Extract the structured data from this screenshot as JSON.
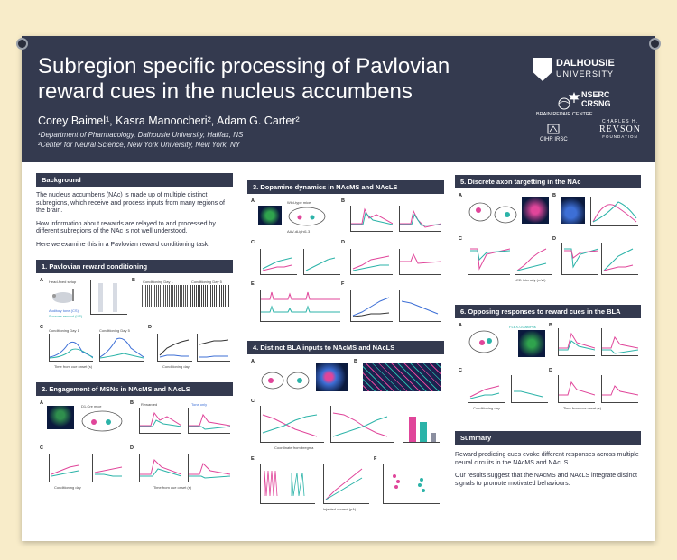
{
  "poster": {
    "title": "Subregion specific processing of Pavlovian reward cues in the nucleus accumbens",
    "authors": "Corey Baimel¹, Kasra Manoocheri², Adam G. Carter²",
    "affiliations": [
      "¹Department of Pharmacology, Dalhousie University, Halifax, NS",
      "²Center for Neural Science, New York University, New York, NY"
    ],
    "logos": {
      "dalhousie": "DALHOUSIE",
      "dalhousie_sub": "UNIVERSITY",
      "brain_repair": "BRAIN REPAIR CENTRE",
      "cihr": "CIHR IRSC",
      "nserc": "NSERC",
      "crsng": "CRSNG",
      "revson_top": "CHARLES H.",
      "revson": "REVSON",
      "revson_sub": "FOUNDATION"
    }
  },
  "background": {
    "heading": "Background",
    "paragraphs": [
      "The nucleus accumbens (NAc) is made up of multiple distinct subregions, which receive and process inputs from many regions of the brain.",
      "How information about rewards are relayed to and processed by different subregions of the NAc is not well understood.",
      "Here we examine this in a Pavlovian reward conditioning task."
    ]
  },
  "sections": {
    "s1": "1. Pavlovian reward conditioning",
    "s2": "2. Engagement of MSNs in NAcMS and NAcLS",
    "s3": "3. Dopamine dynamics in NAcMS and NAcLS",
    "s4": "4. Distinct BLA inputs to NAcMS and NAcLS",
    "s5": "5. Discrete axon targetting in the NAc",
    "s6": "6. Opposing responses to reward cues in the BLA"
  },
  "panel_text": {
    "head_fixed": "Head-fixed setup",
    "auditory": "Auditory tone (CS)",
    "sucrose": "Sucrose reward (US)",
    "rewarded": "Rewarded",
    "tone_only": "Tone only",
    "cond_day1": "Conditioning Day 1",
    "cond_day5": "Conditioning Day 5",
    "time_axis": "Time from cue onset (s)",
    "cond_day": "Conditioning day",
    "lick_rate": "Lick rate (Hz)",
    "d1_mice": "D1-Cre mice",
    "gcamp": "AAV-DIO-GCaMP6",
    "wild_type": "Wild-type mice",
    "dlight": "AAV-dLight1.3",
    "coords": "Coordinate from bregma",
    "injected": "Injected current (pA)",
    "led": "LED intensity (mW)",
    "flex": "FLEX-GCaMP6s",
    "nacms": "NAcMS",
    "nacls": "NAcLS",
    "bla": "BLA"
  },
  "summary": {
    "heading": "Summary",
    "paragraphs": [
      "Reward predicting cues evoke different responses across multiple neural circuits in the NAcMS and NAcLS.",
      "Our results suggest that the NAcMS and NAcLS integrate distinct signals to promote motivated behaviours."
    ]
  },
  "colors": {
    "header_bg": "#343a4f",
    "pink": "#e0459a",
    "teal": "#2bb3a8",
    "blue": "#3d6fd6",
    "background": "#f8ecc9"
  }
}
